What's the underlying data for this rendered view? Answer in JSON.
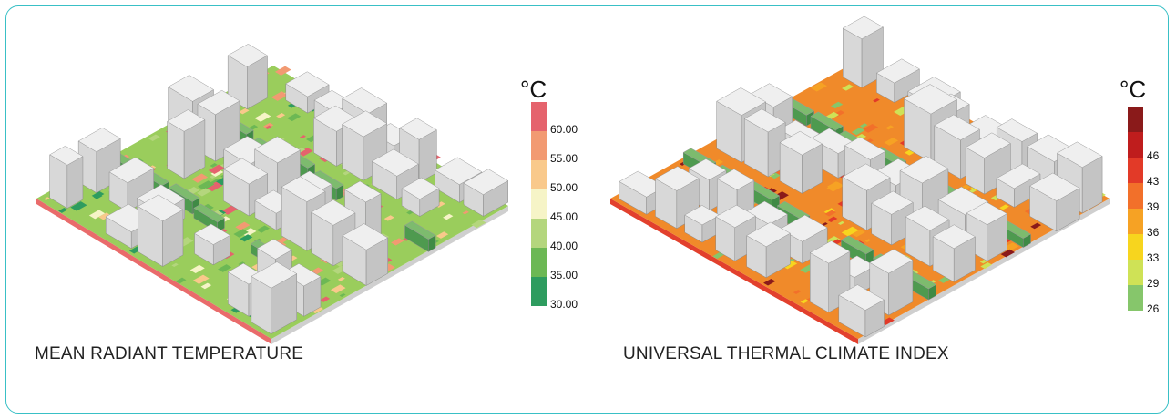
{
  "panels": [
    {
      "caption": "MEAN RADIANT TEMPERATURE",
      "legend": {
        "unit": "°C",
        "classes": [
          {
            "label": "60.00",
            "color": "#e5636d"
          },
          {
            "label": "55.00",
            "color": "#f29a72"
          },
          {
            "label": "50.00",
            "color": "#f9c98b"
          },
          {
            "label": "45.00",
            "color": "#f6f4c7"
          },
          {
            "label": "40.00",
            "color": "#b4d67d"
          },
          {
            "label": "35.00",
            "color": "#6cb854"
          },
          {
            "label": "30.00",
            "color": "#2e9c5f"
          }
        ]
      },
      "ground_color": "#9acd5c",
      "edge_color": "#e96b6b"
    },
    {
      "caption": "UNIVERSAL THERMAL CLIMATE INDEX",
      "legend": {
        "unit": "°C",
        "classes": [
          {
            "label": "",
            "color": "#8a1a1a"
          },
          {
            "label": "46",
            "color": "#bf1d1d"
          },
          {
            "label": "43",
            "color": "#e23a28"
          },
          {
            "label": "39",
            "color": "#f2702a"
          },
          {
            "label": "36",
            "color": "#f6a224"
          },
          {
            "label": "33",
            "color": "#f7d51e"
          },
          {
            "label": "29",
            "color": "#cfe256"
          },
          {
            "label": "26",
            "color": "#86c66b"
          }
        ]
      },
      "ground_color": "#f08a2a",
      "edge_color": "#e2402d"
    }
  ]
}
